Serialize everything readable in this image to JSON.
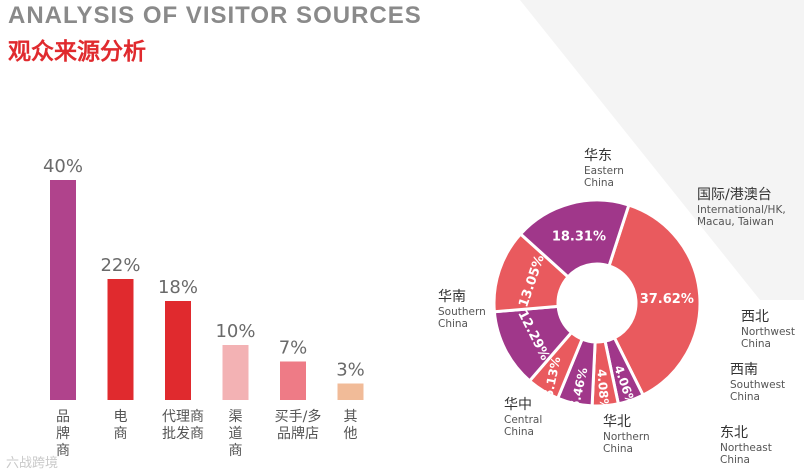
{
  "header": {
    "title_en": "ANALYSIS OF VISITOR SOURCES",
    "title_zh": "观众来源分析"
  },
  "chart_data": [
    {
      "type": "bar",
      "categories": [
        "品牌商",
        "电商",
        "代理商批发商",
        "渠道商",
        "买手/多品牌店",
        "其他"
      ],
      "category_lines": [
        [
          "品",
          "牌",
          "商"
        ],
        [
          "电",
          "商"
        ],
        [
          "代理商",
          "批发商"
        ],
        [
          "渠",
          "道",
          "商"
        ],
        [
          "买手/多",
          "品牌店"
        ],
        [
          "其",
          "他"
        ]
      ],
      "values": [
        40,
        22,
        18,
        10,
        7,
        3
      ],
      "labels": [
        "40%",
        "22%",
        "18%",
        "10%",
        "7%",
        "3%"
      ],
      "colors": [
        "#b0438c",
        "#e02a2e",
        "#e02a2e",
        "#f3b2b4",
        "#ee7b86",
        "#f1bb98"
      ],
      "ylim": [
        0,
        40
      ]
    },
    {
      "type": "pie",
      "donut": true,
      "values": [
        37.62,
        4.06,
        4.08,
        5.46,
        5.13,
        12.29,
        13.05,
        18.31
      ],
      "value_labels": [
        "37.62%",
        "4.06%",
        "4.08%",
        "5.46%",
        "5.13%",
        "12.29%",
        "13.05%",
        "18.31%"
      ],
      "colors": [
        "#e95a5e",
        "#a0378a",
        "#e95a5e",
        "#a0378a",
        "#e95a5e",
        "#a0378a",
        "#e95a5e",
        "#a0378a"
      ],
      "regions": [
        {
          "zh": "华东",
          "en": [
            "Eastern",
            "China"
          ]
        },
        {
          "zh": "国际/港澳台",
          "en": [
            "International/HK,",
            "Macau, Taiwan"
          ]
        },
        {
          "zh": "西北",
          "en": [
            "Northwest",
            "China"
          ]
        },
        {
          "zh": "西南",
          "en": [
            "Southwest",
            "China"
          ]
        },
        {
          "zh": "东北",
          "en": [
            "Northeast",
            "China"
          ]
        },
        {
          "zh": "华北",
          "en": [
            "Northern",
            "China"
          ]
        },
        {
          "zh": "华中",
          "en": [
            "Central",
            "China"
          ]
        },
        {
          "zh": "华南",
          "en": [
            "Southern",
            "China"
          ]
        }
      ]
    }
  ],
  "watermark": "六战跨境"
}
